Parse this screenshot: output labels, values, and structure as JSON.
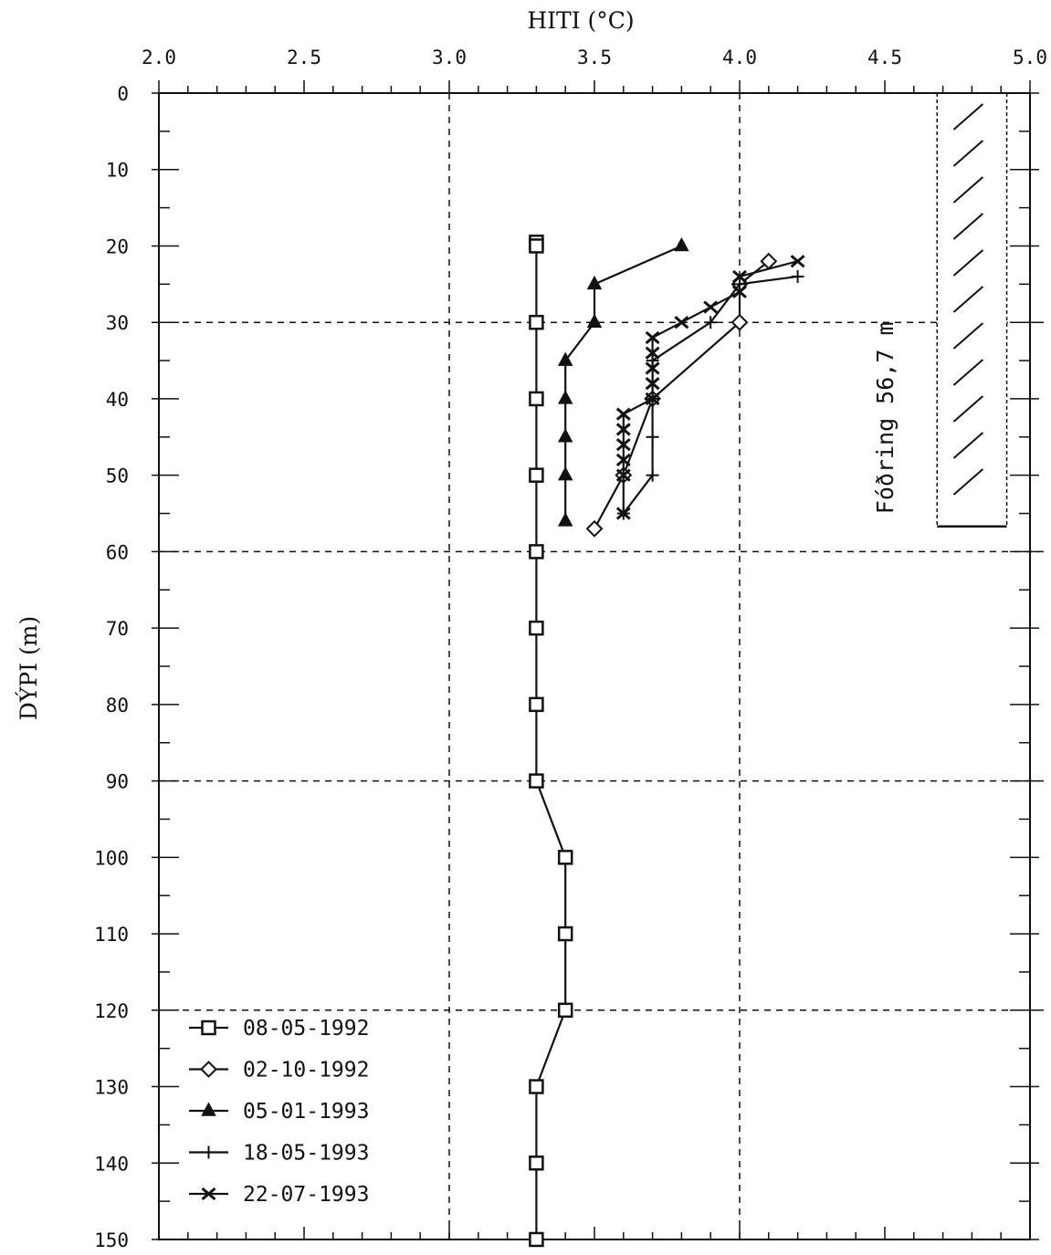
{
  "chart_data": {
    "type": "line",
    "xlabel": "HITI (°C)",
    "ylabel": "DÝPI (m)",
    "xlim": [
      2.0,
      5.0
    ],
    "ylim": [
      0,
      150
    ],
    "x_axis_position": "top",
    "y_axis_inverted": true,
    "x_ticks": [
      "2.0",
      "2.5",
      "3.0",
      "3.5",
      "4.0",
      "4.5",
      "5.0"
    ],
    "y_ticks": [
      "0",
      "10",
      "20",
      "30",
      "40",
      "50",
      "60",
      "70",
      "80",
      "90",
      "100",
      "110",
      "120",
      "130",
      "140",
      "150"
    ],
    "grid": {
      "dashed_x": [
        3.0,
        4.0
      ],
      "dashed_y": [
        30,
        60,
        90,
        120
      ]
    },
    "legend_position": "bottom-left",
    "series": [
      {
        "name": "08-05-1992",
        "marker": "square",
        "points": [
          [
            3.3,
            19.5
          ],
          [
            3.3,
            20
          ],
          [
            3.3,
            30
          ],
          [
            3.3,
            40
          ],
          [
            3.3,
            50
          ],
          [
            3.3,
            60
          ],
          [
            3.3,
            70
          ],
          [
            3.3,
            80
          ],
          [
            3.3,
            90
          ],
          [
            3.4,
            100
          ],
          [
            3.4,
            110
          ],
          [
            3.4,
            120
          ],
          [
            3.3,
            130
          ],
          [
            3.3,
            140
          ],
          [
            3.3,
            150
          ]
        ]
      },
      {
        "name": "02-10-1992",
        "marker": "diamond",
        "points": [
          [
            4.1,
            22
          ],
          [
            4.0,
            25
          ],
          [
            4.0,
            30
          ],
          [
            3.7,
            40
          ],
          [
            3.6,
            50
          ],
          [
            3.5,
            57
          ]
        ]
      },
      {
        "name": "05-01-1993",
        "marker": "triangle",
        "points": [
          [
            3.8,
            20
          ],
          [
            3.5,
            25
          ],
          [
            3.5,
            30
          ],
          [
            3.4,
            35
          ],
          [
            3.4,
            40
          ],
          [
            3.4,
            45
          ],
          [
            3.4,
            50
          ],
          [
            3.4,
            56
          ]
        ]
      },
      {
        "name": "18-05-1993",
        "marker": "plus",
        "points": [
          [
            4.2,
            24
          ],
          [
            4.0,
            25
          ],
          [
            3.9,
            30
          ],
          [
            3.7,
            35
          ],
          [
            3.7,
            40
          ],
          [
            3.7,
            45
          ],
          [
            3.7,
            50
          ],
          [
            3.6,
            55
          ]
        ]
      },
      {
        "name": "22-07-1993",
        "marker": "x",
        "points": [
          [
            4.2,
            22
          ],
          [
            4.0,
            24
          ],
          [
            4.0,
            26
          ],
          [
            3.9,
            28
          ],
          [
            3.8,
            30
          ],
          [
            3.7,
            32
          ],
          [
            3.7,
            34
          ],
          [
            3.7,
            36
          ],
          [
            3.7,
            38
          ],
          [
            3.7,
            40
          ],
          [
            3.6,
            42
          ],
          [
            3.6,
            44
          ],
          [
            3.6,
            46
          ],
          [
            3.6,
            48
          ],
          [
            3.6,
            50
          ],
          [
            3.6,
            55
          ]
        ]
      }
    ],
    "annotation": {
      "label": "Fóðring 56,7 m",
      "depth": 56.7,
      "x_range": [
        4.68,
        4.92
      ]
    }
  }
}
